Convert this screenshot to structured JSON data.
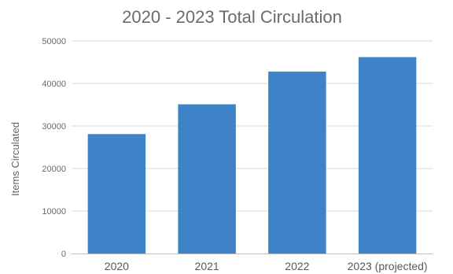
{
  "chart_data": {
    "type": "bar",
    "title": "2020 - 2023 Total Circulation",
    "xlabel": "",
    "ylabel": "Items Circulated",
    "categories": [
      "2020",
      "2021",
      "2022",
      "2023 (projected)"
    ],
    "values": [
      28100,
      35100,
      42800,
      46200
    ],
    "ylim": [
      0,
      50000
    ],
    "yticks": [
      0,
      10000,
      20000,
      30000,
      40000,
      50000
    ],
    "grid": true,
    "legend": "none",
    "bar_color": "#3e83c7"
  }
}
